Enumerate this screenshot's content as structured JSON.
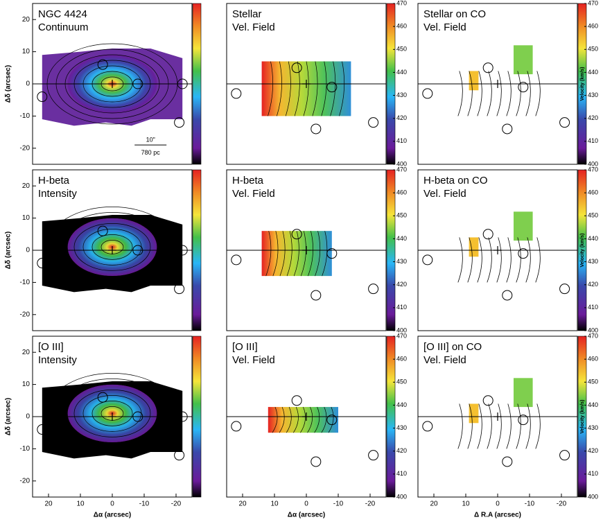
{
  "chart_data": [
    {
      "type": "image",
      "title_lines": [
        "NGC 4424",
        "Continuum"
      ],
      "xlim": [
        25,
        -25
      ],
      "ylim": [
        -25,
        25
      ],
      "yticks": [
        -20,
        -10,
        0,
        10,
        20
      ],
      "ylabel": "Δδ (arcsec)",
      "annotations": [
        "10\"",
        "780 pc"
      ]
    },
    {
      "type": "image",
      "title_lines": [
        "Stellar",
        "Vel. Field"
      ],
      "xlim": [
        25,
        -25
      ],
      "ylim": [
        -25,
        25
      ],
      "colorbar": {
        "lim": [
          400,
          470
        ],
        "ticks": [
          400,
          410,
          420,
          430,
          440,
          450,
          460,
          470
        ]
      }
    },
    {
      "type": "image",
      "title_lines": [
        "Stellar on CO",
        "Vel. Field"
      ],
      "xlim": [
        25,
        -25
      ],
      "ylim": [
        -25,
        25
      ],
      "colorbar": {
        "lim": [
          400,
          470
        ],
        "ticks": [
          400,
          410,
          420,
          430,
          440,
          450,
          460,
          470
        ],
        "label": "Velocity (km/s)"
      }
    },
    {
      "type": "image",
      "title_lines": [
        "H-beta",
        "Intensity"
      ],
      "xlim": [
        25,
        -25
      ],
      "ylim": [
        -25,
        25
      ],
      "yticks": [
        -20,
        -10,
        0,
        10,
        20
      ],
      "ylabel": "Δδ (arcsec)"
    },
    {
      "type": "image",
      "title_lines": [
        "H-beta",
        "Vel. Field"
      ],
      "xlim": [
        25,
        -25
      ],
      "ylim": [
        -25,
        25
      ],
      "colorbar": {
        "lim": [
          400,
          470
        ],
        "ticks": [
          400,
          410,
          420,
          430,
          440,
          450,
          460,
          470
        ]
      }
    },
    {
      "type": "image",
      "title_lines": [
        "H-beta on CO",
        "Vel. Field"
      ],
      "xlim": [
        25,
        -25
      ],
      "ylim": [
        -25,
        25
      ],
      "colorbar": {
        "lim": [
          400,
          470
        ],
        "ticks": [
          400,
          410,
          420,
          430,
          440,
          450,
          460,
          470
        ],
        "label": "Velocity (km/s)"
      }
    },
    {
      "type": "image",
      "title_lines": [
        "[O III]",
        "Intensity"
      ],
      "xlim": [
        25,
        -25
      ],
      "ylim": [
        -25,
        25
      ],
      "xticks": [
        20,
        10,
        0,
        -10,
        -20
      ],
      "yticks": [
        -20,
        -10,
        0,
        10,
        20
      ],
      "xlabel": "Δα (arcsec)",
      "ylabel": "Δδ (arcsec)"
    },
    {
      "type": "image",
      "title_lines": [
        "[O III]",
        "Vel. Field"
      ],
      "xlim": [
        25,
        -25
      ],
      "ylim": [
        -25,
        25
      ],
      "xticks": [
        20,
        10,
        0,
        -10,
        -20
      ],
      "xlabel": "Δα (arcsec)",
      "colorbar": {
        "lim": [
          400,
          470
        ],
        "ticks": [
          400,
          410,
          420,
          430,
          440,
          450,
          460,
          470
        ]
      }
    },
    {
      "type": "image",
      "title_lines": [
        "[O III] on CO",
        "Vel. Field"
      ],
      "xlim": [
        25,
        -25
      ],
      "ylim": [
        -25,
        25
      ],
      "xticks": [
        20,
        10,
        0,
        -10,
        -20
      ],
      "xlabel": "Δ R.A (arcsec)",
      "colorbar": {
        "lim": [
          400,
          470
        ],
        "ticks": [
          400,
          410,
          420,
          430,
          440,
          450,
          460,
          470
        ],
        "label": "Velocity (km/s)"
      }
    }
  ]
}
